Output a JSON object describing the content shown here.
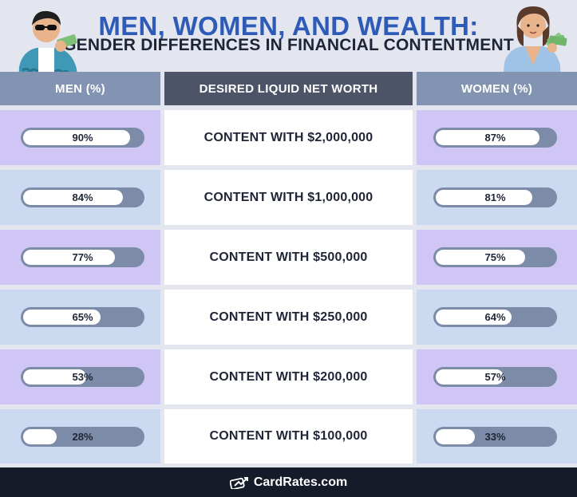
{
  "title": "MEN, WOMEN, AND WEALTH:",
  "subtitle": "GENDER DIFFERENCES IN FINANCIAL CONTENTMENT",
  "headers": {
    "men": "MEN (%)",
    "middle": "DESIRED LIQUID NET WORTH",
    "women": "WOMEN (%)"
  },
  "rows": [
    {
      "label": "CONTENT WITH $2,000,000",
      "men": "90%",
      "women": "87%"
    },
    {
      "label": "CONTENT WITH $1,000,000",
      "men": "84%",
      "women": "81%"
    },
    {
      "label": "CONTENT WITH $500,000",
      "men": "77%",
      "women": "75%"
    },
    {
      "label": "CONTENT WITH $250,000",
      "men": "65%",
      "women": "64%"
    },
    {
      "label": "CONTENT WITH $200,000",
      "men": "53%",
      "women": "57%"
    },
    {
      "label": "CONTENT WITH $100,000",
      "men": "28%",
      "women": "33%"
    }
  ],
  "chart_data": {
    "type": "bar",
    "categories": [
      "CONTENT WITH $2,000,000",
      "CONTENT WITH $1,000,000",
      "CONTENT WITH $500,000",
      "CONTENT WITH $250,000",
      "CONTENT WITH $200,000",
      "CONTENT WITH $100,000"
    ],
    "series": [
      {
        "name": "MEN (%)",
        "values": [
          90,
          84,
          77,
          65,
          53,
          28
        ]
      },
      {
        "name": "WOMEN (%)",
        "values": [
          87,
          81,
          75,
          64,
          57,
          33
        ]
      }
    ],
    "ylim": [
      0,
      100
    ]
  },
  "colors": {
    "title": "#2f5bb8",
    "row_purple": "#cfc6f5",
    "row_blue": "#cbd9f1",
    "bar_track": "#7c8ba7",
    "header_side": "#8394b2",
    "header_mid": "#4d5468"
  },
  "footer": {
    "brand": "CardRates.com",
    "icon": "cardrates-logo-icon"
  }
}
